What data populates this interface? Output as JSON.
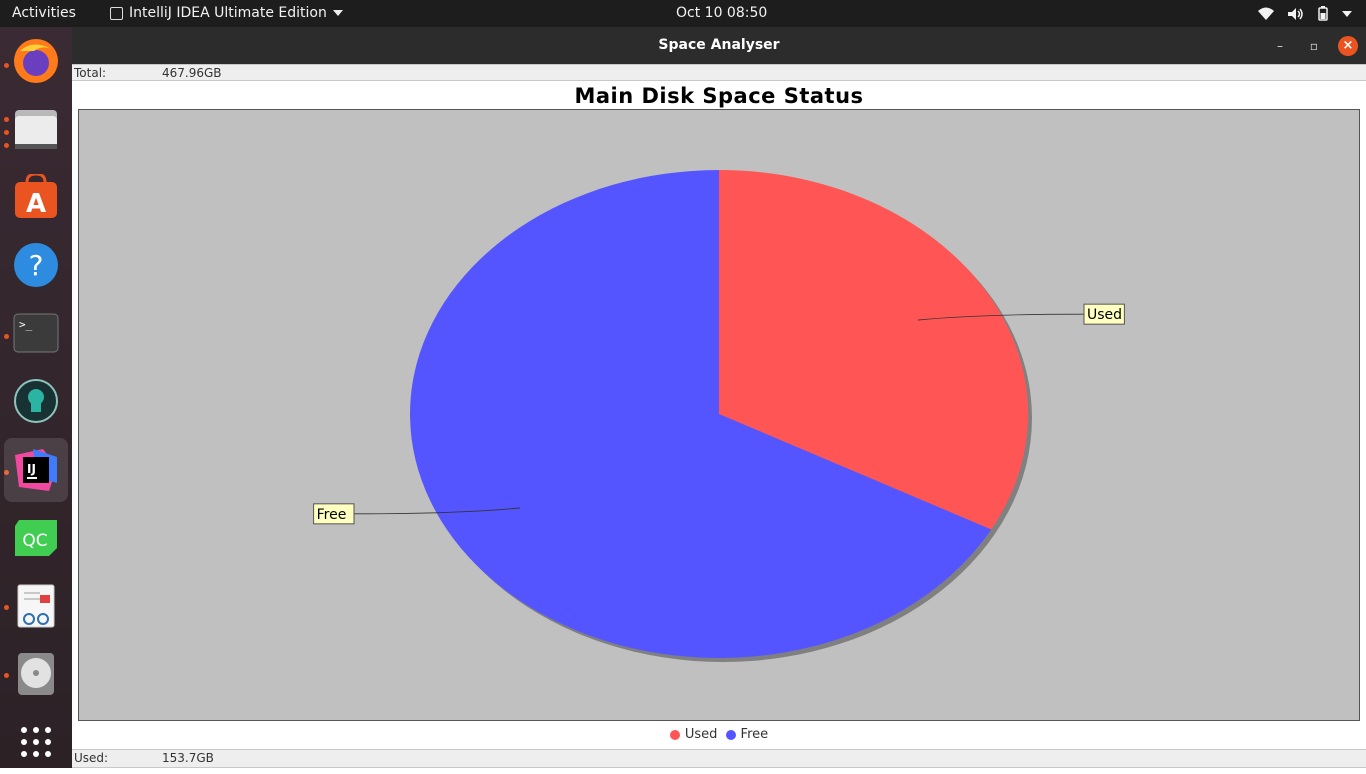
{
  "topbar": {
    "activities": "Activities",
    "app_name": "IntelliJ IDEA Ultimate Edition",
    "clock": "Oct 10  08:50"
  },
  "dock": {
    "items": [
      "firefox-icon",
      "files-icon",
      "software-center-icon",
      "help-icon",
      "terminal-icon",
      "gitkraken-icon",
      "intellij-icon",
      "qt-creator-icon",
      "document-viewer-icon",
      "disks-icon",
      "show-apps-icon"
    ]
  },
  "window": {
    "title": "Space Analyser",
    "total_label": "Total:",
    "total_value": "467.96GB",
    "used_label": "Used:",
    "used_value": "153.7GB"
  },
  "chart_data": {
    "type": "pie",
    "title": "Main Disk Space Status",
    "slices": [
      {
        "label": "Used",
        "value": 153.7,
        "color": "#ff5555"
      },
      {
        "label": "Free",
        "value": 314.26,
        "color": "#5555ff"
      }
    ],
    "legend": [
      "Used",
      "Free"
    ],
    "legend_position": "bottom",
    "background": "#c0c0c0"
  }
}
